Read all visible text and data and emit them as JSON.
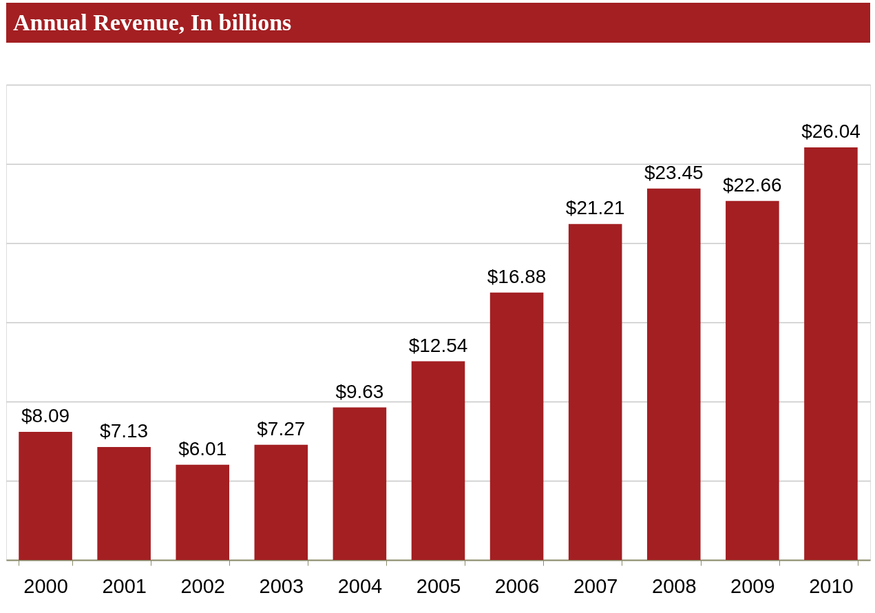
{
  "chart_data": {
    "type": "bar",
    "title": "Annual Revenue, In billions",
    "categories": [
      "2000",
      "2001",
      "2002",
      "2003",
      "2004",
      "2005",
      "2006",
      "2007",
      "2008",
      "2009",
      "2010"
    ],
    "values": [
      8.09,
      7.13,
      6.01,
      7.27,
      9.63,
      12.54,
      16.88,
      21.21,
      23.45,
      22.66,
      26.04
    ],
    "value_labels": [
      "$8.09",
      "$7.13",
      "$6.01",
      "$7.27",
      "$9.63",
      "$12.54",
      "$16.88",
      "$21.21",
      "$23.45",
      "$22.66",
      "$26.04"
    ],
    "color": "#a31f22",
    "ylim": [
      0,
      30
    ],
    "yticks": [
      {
        "value": 0,
        "label": null
      },
      {
        "value": 5,
        "label": null
      },
      {
        "value": 10,
        "label": null
      },
      {
        "value": 15,
        "label": null
      },
      {
        "value": 20,
        "label": null
      },
      {
        "value": 25,
        "label": null
      },
      {
        "value": 30,
        "label": null
      }
    ],
    "grid": "y",
    "tick_labels": "x"
  }
}
